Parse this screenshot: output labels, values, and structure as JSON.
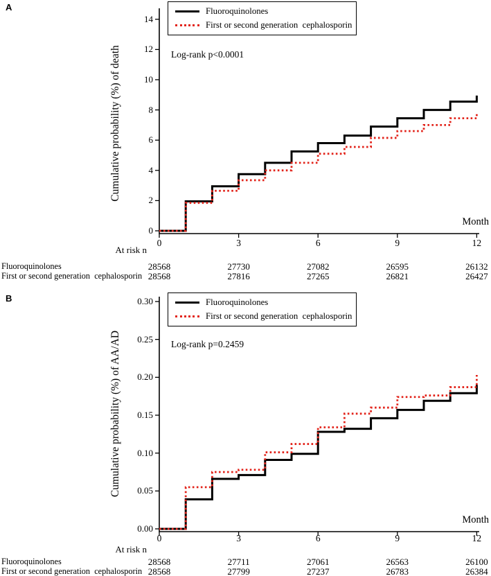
{
  "colors": {
    "fluoroquinolones": "#000000",
    "cephalosporin": "#e2231a",
    "axis": "#000000",
    "background": "#ffffff"
  },
  "panels": [
    {
      "panel_label": "A",
      "y_axis_label": "Cumulative probability (%) of death",
      "x_axis_label": "Month",
      "log_rank": "Log-rank p<0.0001",
      "legend": [
        {
          "label": "Fluoroquinolones",
          "line_style": "solid"
        },
        {
          "label": "First or second generation  cephalosporin",
          "line_style": "dotted"
        }
      ],
      "at_risk": {
        "caption": "At risk n",
        "months": [
          0,
          3,
          6,
          9,
          12
        ],
        "rows": [
          {
            "label": "Fluoroquinolones",
            "values": [
              "28568",
              "27730",
              "27082",
              "26595",
              "26132"
            ]
          },
          {
            "label": "First or second generation  cephalosporin",
            "values": [
              "28568",
              "27816",
              "27265",
              "26821",
              "26427"
            ]
          }
        ]
      }
    },
    {
      "panel_label": "B",
      "y_axis_label": "Cumulative probability (%) of AA/AD",
      "x_axis_label": "Month",
      "log_rank": "Log-rank p=0.2459",
      "legend": [
        {
          "label": "Fluoroquinolones",
          "line_style": "solid"
        },
        {
          "label": "First or second generation  cephalosporin",
          "line_style": "dotted"
        }
      ],
      "at_risk": {
        "caption": "At risk n",
        "months": [
          0,
          3,
          6,
          9,
          12
        ],
        "rows": [
          {
            "label": "Fluoroquinolones",
            "values": [
              "28568",
              "27711",
              "27061",
              "26563",
              "26100"
            ]
          },
          {
            "label": "First or second generation  cephalosporin",
            "values": [
              "28568",
              "27799",
              "27237",
              "26783",
              "26384"
            ]
          }
        ]
      }
    }
  ],
  "chart_data": [
    {
      "type": "line",
      "subtype": "kaplan-meier-step",
      "title": "Panel A: cumulative probability of death",
      "xlabel": "Month",
      "ylabel": "Cumulative probability (%) of death",
      "xlim": [
        0,
        12
      ],
      "ylim": [
        0,
        14.5
      ],
      "x_ticks": [
        0,
        3,
        6,
        9,
        12
      ],
      "x_tick_labels": [
        "0",
        "3",
        "6",
        "9",
        "12"
      ],
      "y_ticks": [
        0,
        2,
        4,
        6,
        8,
        10,
        12,
        14
      ],
      "y_tick_labels": [
        "0",
        "2",
        "4",
        "6",
        "8",
        "10",
        "12",
        "14"
      ],
      "grid": false,
      "legend_position": "top-left-inside",
      "annotation": "Log-rank p<0.0001",
      "step_months": [
        0,
        1,
        2,
        3,
        4,
        5,
        6,
        7,
        8,
        9,
        10,
        11
      ],
      "series": [
        {
          "name": "Fluoroquinolones",
          "color": "#000000",
          "line_style": "solid",
          "values": [
            0,
            1.95,
            2.95,
            3.75,
            4.5,
            5.25,
            5.8,
            6.3,
            6.9,
            7.45,
            8.0,
            8.55
          ],
          "final_value": 8.95
        },
        {
          "name": "First or second generation  cephalosporin",
          "color": "#e2231a",
          "line_style": "dotted",
          "values": [
            0,
            1.85,
            2.65,
            3.35,
            4.0,
            4.5,
            5.1,
            5.55,
            6.15,
            6.6,
            7.0,
            7.45
          ],
          "final_value": 7.8
        }
      ]
    },
    {
      "type": "line",
      "subtype": "kaplan-meier-step",
      "title": "Panel B: cumulative probability of AA/AD",
      "xlabel": "Month",
      "ylabel": "Cumulative probability (%) of AA/AD",
      "xlim": [
        0,
        12
      ],
      "ylim": [
        0,
        0.3
      ],
      "x_ticks": [
        0,
        3,
        6,
        9,
        12
      ],
      "x_tick_labels": [
        "0",
        "3",
        "6",
        "9",
        "12"
      ],
      "y_ticks": [
        0,
        0.05,
        0.1,
        0.15,
        0.2,
        0.25,
        0.3
      ],
      "y_tick_labels": [
        "0.00",
        "0.05",
        "0.10",
        "0.15",
        "0.20",
        "0.25",
        "0.30"
      ],
      "grid": false,
      "legend_position": "top-left-inside",
      "annotation": "Log-rank p=0.2459",
      "step_months": [
        0,
        1,
        2,
        3,
        4,
        5,
        6,
        7,
        8,
        9,
        10,
        11
      ],
      "series": [
        {
          "name": "Fluoroquinolones",
          "color": "#000000",
          "line_style": "solid",
          "values": [
            0,
            0.039,
            0.066,
            0.071,
            0.091,
            0.099,
            0.128,
            0.132,
            0.146,
            0.157,
            0.169,
            0.179
          ],
          "final_value": 0.19
        },
        {
          "name": "First or second generation  cephalosporin",
          "color": "#e2231a",
          "line_style": "dotted",
          "values": [
            0,
            0.055,
            0.075,
            0.078,
            0.101,
            0.112,
            0.134,
            0.152,
            0.16,
            0.174,
            0.176,
            0.187
          ],
          "final_value": 0.203
        }
      ]
    }
  ]
}
